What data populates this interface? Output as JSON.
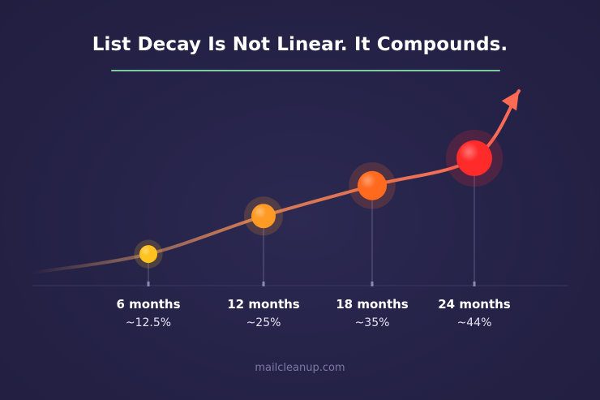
{
  "title": "List Decay Is Not Linear. It Compounds.",
  "footer": "mailcleanup.com",
  "colors": {
    "background": "#27244a",
    "title_rule": "#7fc9a1",
    "curve_start": "#c7845a",
    "curve_end": "#ff6a55",
    "point_colors": [
      "#ffc21f",
      "#ff9a24",
      "#ff6a1f",
      "#ff2a2a"
    ]
  },
  "chart_data": {
    "type": "line",
    "title": "List Decay Is Not Linear. It Compounds.",
    "categories": [
      "6 months",
      "12 months",
      "18 months",
      "24 months"
    ],
    "value_labels": [
      "~12.5%",
      "~25%",
      "~35%",
      "~44%"
    ],
    "values": [
      12.5,
      25,
      35,
      44
    ],
    "xlabel": "",
    "ylabel": "",
    "grid": false,
    "trend_arrow": true
  }
}
